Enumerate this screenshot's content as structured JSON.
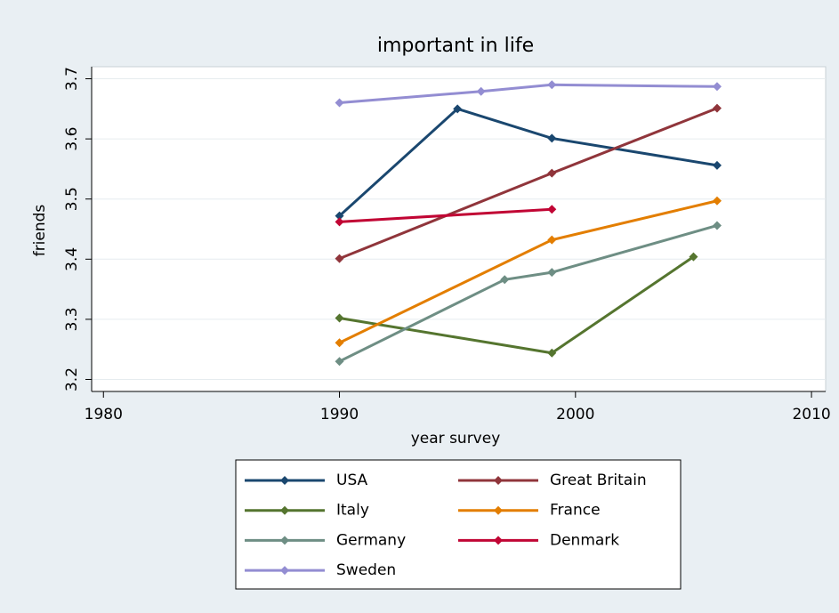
{
  "chart_data": {
    "type": "line",
    "title": "important in life",
    "x_label": "year survey",
    "y_label": "friends",
    "xlim": [
      1979.5,
      2010.6
    ],
    "xticks": [
      1980,
      1990,
      2000,
      2010
    ],
    "ylim": [
      3.18,
      3.72
    ],
    "yticks": [
      3.2,
      3.3,
      3.4,
      3.5,
      3.6,
      3.7
    ],
    "grid": true,
    "legend": "bottom",
    "series": [
      {
        "name": "USA",
        "color": "#1a476f",
        "x": [
          1990,
          1995,
          1999,
          2006
        ],
        "values": [
          3.472,
          3.65,
          3.601,
          3.556
        ]
      },
      {
        "name": "Great Britain",
        "color": "#90353b",
        "x": [
          1990,
          1999,
          2006
        ],
        "values": [
          3.401,
          3.543,
          3.651
        ]
      },
      {
        "name": "Italy",
        "color": "#55752f",
        "x": [
          1990,
          1999,
          2005
        ],
        "values": [
          3.302,
          3.244,
          3.404
        ]
      },
      {
        "name": "France",
        "color": "#e37e00",
        "x": [
          1990,
          1999,
          2006
        ],
        "values": [
          3.261,
          3.432,
          3.497
        ]
      },
      {
        "name": "Germany",
        "color": "#6e8e84",
        "x": [
          1990,
          1997,
          1999,
          2006
        ],
        "values": [
          3.23,
          3.366,
          3.378,
          3.456
        ]
      },
      {
        "name": "Denmark",
        "color": "#c10534",
        "x": [
          1990,
          1999
        ],
        "values": [
          3.462,
          3.483
        ]
      },
      {
        "name": "Sweden",
        "color": "#938dd2",
        "x": [
          1990,
          1996,
          1999,
          2006
        ],
        "values": [
          3.66,
          3.679,
          3.69,
          3.687
        ]
      }
    ]
  }
}
